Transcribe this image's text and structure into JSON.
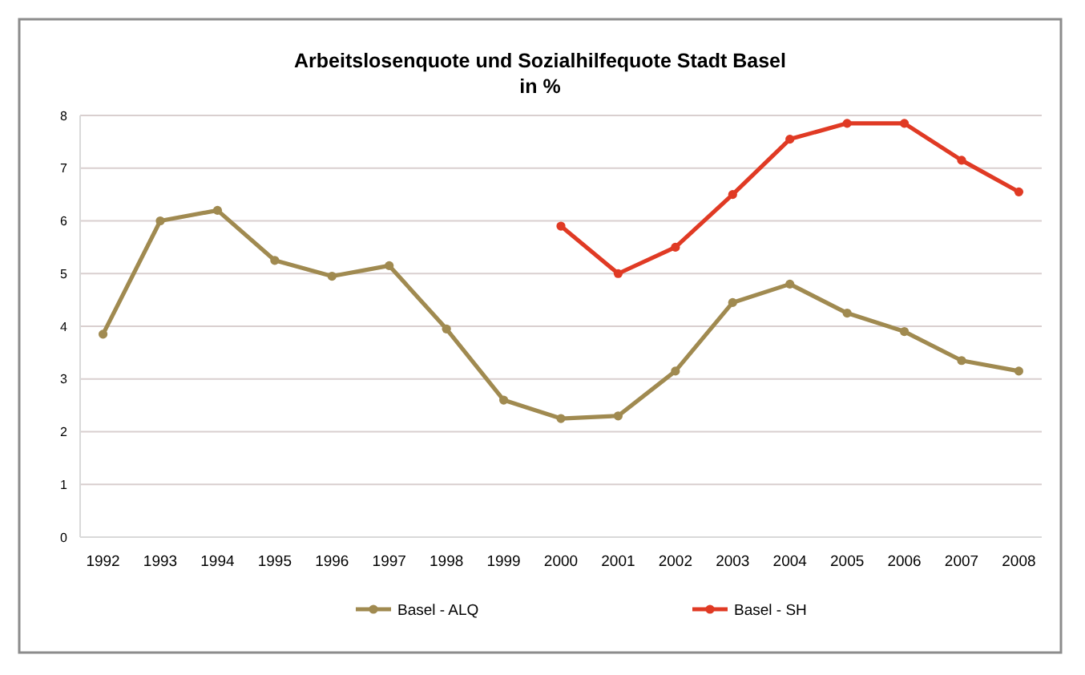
{
  "chart_data": {
    "type": "line",
    "title": "Arbeitslosenquote und Sozialhilfequote Stadt Basel",
    "subtitle": "in %",
    "categories": [
      "1992",
      "1993",
      "1994",
      "1995",
      "1996",
      "1997",
      "1998",
      "1999",
      "2000",
      "2001",
      "2002",
      "2003",
      "2004",
      "2005",
      "2006",
      "2007",
      "2008"
    ],
    "series": [
      {
        "name": "Basel - ALQ",
        "color": "#a08a50",
        "values": [
          3.85,
          6.0,
          6.2,
          5.25,
          4.95,
          5.15,
          3.95,
          2.6,
          2.25,
          2.3,
          3.15,
          4.45,
          4.8,
          4.25,
          3.9,
          3.35,
          3.15
        ]
      },
      {
        "name": "Basel - SH",
        "color": "#e03a24",
        "values": [
          null,
          null,
          null,
          null,
          null,
          null,
          null,
          null,
          5.9,
          5.0,
          5.5,
          6.5,
          7.55,
          7.85,
          7.85,
          7.15,
          6.55
        ]
      }
    ],
    "ylim": [
      0,
      8
    ],
    "yticks": [
      0,
      1,
      2,
      3,
      4,
      5,
      6,
      7,
      8
    ],
    "grid": "y",
    "legend": "bottom",
    "marker": "circle",
    "line_style": "solid"
  }
}
